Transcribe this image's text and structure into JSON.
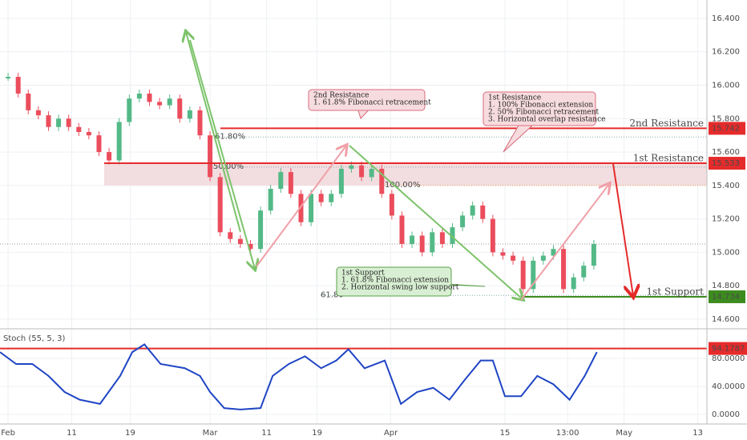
{
  "chart_data": [
    {
      "type": "candlestick",
      "xlim": [
        -0.8,
        69.2
      ],
      "xticks": [
        {
          "value": 0,
          "label": "Feb"
        },
        {
          "value": 6.3,
          "label": "11"
        },
        {
          "value": 12.1,
          "label": "19"
        },
        {
          "value": 20,
          "label": "Mar"
        },
        {
          "value": 25.6,
          "label": "11"
        },
        {
          "value": 30.6,
          "label": "19"
        },
        {
          "value": 37.9,
          "label": "Apr"
        },
        {
          "value": 49.2,
          "label": "15"
        },
        {
          "value": 55.4,
          "label": "13:00"
        },
        {
          "value": 61,
          "label": "May"
        },
        {
          "value": 68.3,
          "label": "13"
        }
      ],
      "ylim": [
        14.547,
        16.51
      ],
      "yticks": [
        {
          "value": 16.4,
          "label": "16.400"
        },
        {
          "value": 16.2,
          "label": "16.200"
        },
        {
          "value": 16,
          "label": "16.000"
        },
        {
          "value": 15.8,
          "label": "15.800"
        },
        {
          "value": 15.6,
          "label": "15.600"
        },
        {
          "value": 15.4,
          "label": "15.400"
        },
        {
          "value": 15.2,
          "label": "15.200"
        },
        {
          "value": 15,
          "label": "15.000"
        },
        {
          "value": 14.8,
          "label": "14.800"
        },
        {
          "value": 14.6,
          "label": "14.600"
        }
      ],
      "x": [
        0,
        1,
        2,
        3,
        4,
        5,
        6,
        7,
        8,
        9,
        10,
        11,
        12,
        13,
        14,
        15,
        16,
        17,
        18,
        19,
        20,
        21,
        22,
        23,
        24,
        25,
        26,
        27,
        28,
        29,
        30,
        31,
        32,
        33,
        34,
        35,
        36,
        37,
        38,
        39,
        40,
        41,
        42,
        43,
        44,
        45,
        46,
        47,
        48,
        49,
        50,
        51,
        52,
        53,
        54,
        55,
        56,
        57,
        58
      ],
      "series": [
        {
          "up_color": "#53b987",
          "down_color": "#eb4d5c",
          "values": [
            16.05,
            15.95,
            15.85,
            15.82,
            15.75,
            15.8,
            15.75,
            15.72,
            15.7,
            15.6,
            15.55,
            15.78,
            15.92,
            15.95,
            15.9,
            15.88,
            15.92,
            15.8,
            15.85,
            15.7,
            15.45,
            15.12,
            15.08,
            15.05,
            15.02,
            15.25,
            15.38,
            15.48,
            15.35,
            15.18,
            15.35,
            15.3,
            15.35,
            15.5,
            15.52,
            15.45,
            15.5,
            15.35,
            15.22,
            15.05,
            15.1,
            15.0,
            15.12,
            15.05,
            15.15,
            15.22,
            15.28,
            15.2,
            15.0,
            14.98,
            14.95,
            14.78,
            14.95,
            14.98,
            15.02,
            14.78,
            14.85,
            14.92,
            15.05
          ]
        }
      ],
      "zone": {
        "low": 15.4,
        "high": 15.533,
        "color": "#f2dde0"
      },
      "levels": [
        {
          "label": "2nd Resistance",
          "value": 15.742,
          "value_label": "15.742",
          "color": "#e52b2b"
        },
        {
          "label": "1st Resistance",
          "value": 15.533,
          "value_label": "15.533",
          "color": "#e52b2b"
        },
        {
          "label": "1st Support",
          "value": 14.734,
          "value_label": "14.734",
          "color": "#3d8b1f"
        }
      ],
      "fib": [
        {
          "label": "61.80%",
          "value": 15.69
        },
        {
          "label": "50.00%",
          "value": 15.51
        },
        {
          "label": "100.00%",
          "value": 15.4
        },
        {
          "label": "61.80",
          "value": 14.742
        }
      ],
      "annotations": [
        {
          "lines": [
            "2nd Resistance",
            "1. 61.8% Fibonacci retracement"
          ]
        },
        {
          "lines": [
            "1st Resistance",
            "1. 100% Fibonacci extension",
            "2. 50% Fibonacci retracement",
            "3. Horizontal overlap resistance"
          ]
        },
        {
          "lines": [
            "1st Support",
            "1. 61.8% Fibonacci extension",
            "2. Horizontal swing low support"
          ]
        }
      ]
    },
    {
      "type": "line",
      "title": "Stoch (55, 5, 3)",
      "color": "#1f45c4",
      "xlim": [
        -0.8,
        69.2
      ],
      "ylim": [
        -13.7,
        120
      ],
      "yticks": [
        {
          "value": 80,
          "label": "80.0000"
        },
        {
          "value": 40,
          "label": "40.0000"
        },
        {
          "value": 0,
          "label": "0.0000"
        }
      ],
      "x": [
        -0.8,
        0.8,
        2.4,
        4,
        5.6,
        7.1,
        9.1,
        11.1,
        12.3,
        13.5,
        15.1,
        17.5,
        19,
        20,
        21.4,
        23,
        25,
        26.2,
        27.8,
        29.4,
        31,
        32.5,
        33.7,
        35.3,
        37.3,
        38.9,
        40.5,
        42.1,
        43.7,
        45.2,
        46.8,
        48,
        49.2,
        50.8,
        52.4,
        54,
        55.6,
        57.1,
        58.3
      ],
      "values": [
        89,
        72,
        72,
        55,
        32,
        21,
        15,
        55,
        89,
        100,
        72,
        66,
        55,
        32,
        9,
        7,
        9,
        55,
        72,
        83,
        66,
        77,
        93,
        66,
        77,
        15,
        32,
        38,
        21,
        49,
        77,
        77,
        26,
        26,
        55,
        43,
        21,
        55,
        89
      ],
      "level": {
        "value": 94.1787,
        "label": "94.1787",
        "color": "#e52b2b"
      }
    }
  ]
}
